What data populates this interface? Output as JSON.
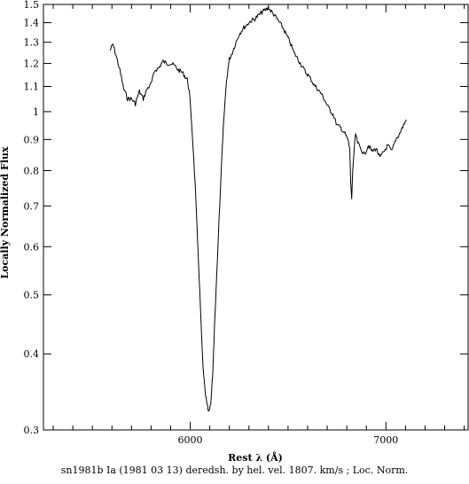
{
  "caption": "sn1981b Ia (1981 03 13) deredsh. by hel. vel.  1807. km/s ;  Loc. Norm.",
  "chart_data": {
    "type": "line",
    "xlabel": "Rest λ (Å)",
    "ylabel": "Locally Normalized Flux",
    "xlim": [
      5250,
      7420
    ],
    "ylim": [
      0.3,
      1.5
    ],
    "yscale": "log",
    "x_ticks": [
      6000,
      7000
    ],
    "y_ticks": [
      0.3,
      0.4,
      0.5,
      0.6,
      0.7,
      0.8,
      0.9,
      1,
      1.1,
      1.2,
      1.3,
      1.4,
      1.5
    ],
    "y_tick_labels": [
      "0.3",
      "0.4",
      "0.5",
      "0.6",
      "0.7",
      "0.8",
      "0.9",
      "1",
      "1.1",
      "1.2",
      "1.3",
      "1.4",
      "1.5"
    ],
    "grid": false,
    "line_color": "#000000",
    "series": [
      {
        "x": [
          5590,
          5605,
          5620,
          5640,
          5660,
          5680,
          5700,
          5720,
          5740,
          5760,
          5780,
          5800,
          5820,
          5840,
          5860,
          5880,
          5900,
          5920,
          5940,
          5960,
          5975,
          5985,
          5995,
          6005,
          6015,
          6025,
          6035,
          6045,
          6055,
          6065,
          6075,
          6085,
          6095,
          6105,
          6115,
          6125,
          6140,
          6155,
          6170,
          6185,
          6200,
          6215,
          6230,
          6250,
          6270,
          6290,
          6310,
          6330,
          6350,
          6370,
          6385,
          6400,
          6415,
          6430,
          6450,
          6470,
          6490,
          6510,
          6530,
          6550,
          6570,
          6590,
          6610,
          6630,
          6650,
          6670,
          6690,
          6710,
          6730,
          6750,
          6770,
          6790,
          6805,
          6815,
          6820,
          6825,
          6830,
          6835,
          6845,
          6855,
          6870,
          6890,
          6910,
          6930,
          6950,
          6970,
          6990,
          7010,
          7030,
          7050,
          7070,
          7090,
          7105
        ],
        "y": [
          1.26,
          1.29,
          1.24,
          1.17,
          1.09,
          1.05,
          1.05,
          1.03,
          1.08,
          1.05,
          1.09,
          1.11,
          1.17,
          1.18,
          1.21,
          1.2,
          1.2,
          1.19,
          1.17,
          1.16,
          1.14,
          1.13,
          1.08,
          0.98,
          0.87,
          0.76,
          0.64,
          0.54,
          0.45,
          0.38,
          0.35,
          0.33,
          0.32,
          0.33,
          0.37,
          0.45,
          0.58,
          0.75,
          0.95,
          1.12,
          1.22,
          1.25,
          1.29,
          1.34,
          1.37,
          1.39,
          1.41,
          1.42,
          1.44,
          1.46,
          1.47,
          1.48,
          1.46,
          1.44,
          1.41,
          1.38,
          1.34,
          1.3,
          1.25,
          1.22,
          1.19,
          1.16,
          1.14,
          1.11,
          1.09,
          1.07,
          1.04,
          1.01,
          0.99,
          0.95,
          0.94,
          0.92,
          0.9,
          0.87,
          0.76,
          0.72,
          0.8,
          0.84,
          0.92,
          0.89,
          0.87,
          0.85,
          0.88,
          0.86,
          0.87,
          0.84,
          0.86,
          0.88,
          0.86,
          0.9,
          0.92,
          0.95,
          0.97
        ]
      }
    ]
  }
}
